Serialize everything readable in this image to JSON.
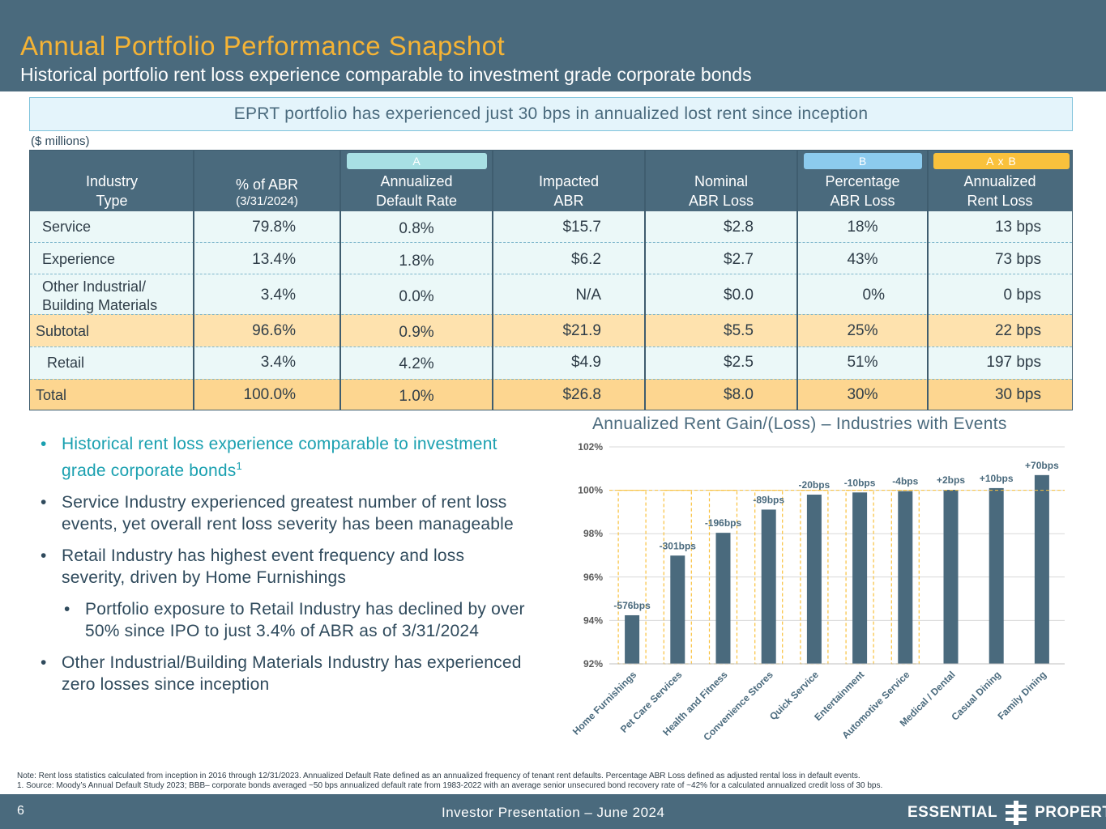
{
  "header": {
    "title": "Annual Portfolio Performance Snapshot",
    "subtitle": "Historical portfolio rent loss experience comparable to investment grade corporate bonds"
  },
  "callout": "EPRT portfolio has experienced just 30 bps in annualized lost rent since inception",
  "units": "($ millions)",
  "table": {
    "tags": {
      "a": "A",
      "b": "B",
      "axb": "A x B"
    },
    "tag_colors": {
      "a": "#a8e0e4",
      "b": "#8ccbee",
      "axb": "#f9c13c"
    },
    "headers": {
      "industry": "Industry\nType",
      "pct_abr": "% of ABR",
      "pct_abr_sub": "(3/31/2024)",
      "default_rate": "Annualized\nDefault Rate",
      "impacted_abr": "Impacted\nABR",
      "nominal_loss": "Nominal\nABR Loss",
      "pct_loss": "Percentage\nABR Loss",
      "rent_loss": "Annualized\nRent Loss"
    },
    "rows": [
      {
        "industry": "Service",
        "pct_abr": "79.8%",
        "default_rate": "0.8%",
        "impacted_abr": "$15.7",
        "nominal_loss": "$2.8",
        "pct_loss": "18%",
        "rent_loss": "13 bps"
      },
      {
        "industry": "Experience",
        "pct_abr": "13.4%",
        "default_rate": "1.8%",
        "impacted_abr": "$6.2",
        "nominal_loss": "$2.7",
        "pct_loss": "43%",
        "rent_loss": "73 bps"
      },
      {
        "industry": "Other Industrial/\nBuilding Materials",
        "pct_abr": "3.4%",
        "default_rate": "0.0%",
        "impacted_abr": "N/A",
        "nominal_loss": "$0.0",
        "pct_loss": "0%",
        "rent_loss": "0 bps"
      },
      {
        "industry": "Subtotal",
        "pct_abr": "96.6%",
        "default_rate": "0.9%",
        "impacted_abr": "$21.9",
        "nominal_loss": "$5.5",
        "pct_loss": "25%",
        "rent_loss": "22 bps"
      },
      {
        "industry": "Retail",
        "pct_abr": "3.4%",
        "default_rate": "4.2%",
        "impacted_abr": "$4.9",
        "nominal_loss": "$2.5",
        "pct_loss": "51%",
        "rent_loss": "197 bps"
      },
      {
        "industry": "Total",
        "pct_abr": "100.0%",
        "default_rate": "1.0%",
        "impacted_abr": "$26.8",
        "nominal_loss": "$8.0",
        "pct_loss": "30%",
        "rent_loss": "30 bps"
      }
    ]
  },
  "bullets": [
    {
      "text": "Historical rent loss experience comparable to investment grade corporate bonds",
      "sup": "1"
    },
    {
      "text": "Service Industry experienced greatest number of rent loss events, yet overall rent loss severity has been manageable"
    },
    {
      "text": "Retail Industry has highest event frequency and loss severity, driven by Home Furnishings"
    },
    {
      "text": "Portfolio exposure to Retail Industry has declined by over 50% since IPO to just 3.4% of ABR as of 3/31/2024"
    },
    {
      "text": "Other Industrial/Building Materials Industry has experienced zero losses since inception"
    }
  ],
  "bullet_glyph": "•",
  "chart_data": {
    "type": "bar",
    "title": "Annualized Rent Gain/(Loss) – Industries with Events",
    "categories": [
      "Home Furnishings",
      "Pet Care Services",
      "Health and Fitness",
      "Convenience Stores",
      "Quick Service",
      "Entertainment",
      "Automotive Service",
      "Medical / Dental",
      "Casual Dining",
      "Family Dining"
    ],
    "values": [
      94.24,
      96.99,
      98.04,
      99.11,
      99.8,
      99.9,
      99.96,
      100.02,
      100.1,
      100.7
    ],
    "data_labels": [
      "-576bps",
      "-301bps",
      "-196bps",
      "-89bps",
      "-20bps",
      "-10bps",
      "-4bps",
      "+2bps",
      "+10bps",
      "+70bps"
    ],
    "yticks": [
      "92%",
      "94%",
      "96%",
      "98%",
      "100%",
      "102%"
    ],
    "ylim": [
      92,
      102
    ],
    "ytick_values": [
      92,
      94,
      96,
      98,
      100,
      102
    ],
    "reference_value": 100,
    "bar_color": "#4a6a7d",
    "ref_color": "#f9c13c",
    "grid": true,
    "xlabel": "",
    "ylabel": ""
  },
  "note": {
    "line1": "Note: Rent loss statistics calculated from inception in 2016 through 12/31/2023. Annualized Default Rate defined as an annualized frequency of tenant rent defaults. Percentage ABR Loss defined as adjusted rental loss in default events.",
    "line2": "1.  Source: Moody’s Annual Default Study 2023; BBB– corporate bonds averaged ~50 bps annualized default rate from 1983-2022 with an average senior unsecured bond recovery rate of ~42% for a calculated annualized credit loss of 30 bps."
  },
  "footer": {
    "page_number": "6",
    "presentation": "Investor Presentation – June 2024",
    "logo_left": "ESSENTIAL",
    "logo_right": "PROPERTIES"
  }
}
